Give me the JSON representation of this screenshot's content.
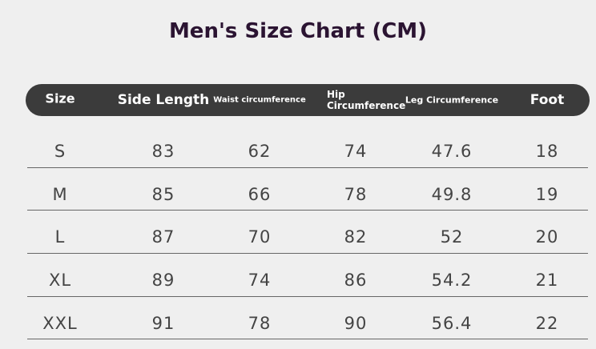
{
  "title": "Men's Size Chart (CM)",
  "table": {
    "headers": [
      "Size",
      "Side Length",
      "Waist circumference",
      "Hip Circumference",
      "Leg Circumference",
      "Foot"
    ],
    "rows": [
      [
        "S",
        "83",
        "62",
        "74",
        "47.6",
        "18"
      ],
      [
        "M",
        "85",
        "66",
        "78",
        "49.8",
        "19"
      ],
      [
        "L",
        "87",
        "70",
        "82",
        "52",
        "20"
      ],
      [
        "XL",
        "89",
        "74",
        "86",
        "54.2",
        "21"
      ],
      [
        "XXL",
        "91",
        "78",
        "90",
        "56.4",
        "22"
      ]
    ]
  }
}
